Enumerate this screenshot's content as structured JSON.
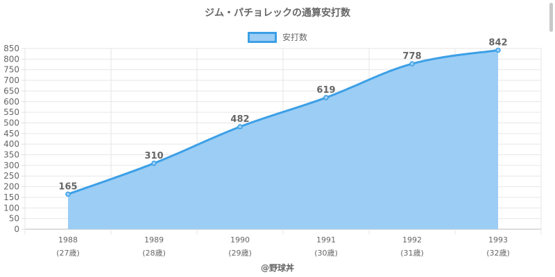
{
  "chart_data": {
    "type": "area",
    "title": "ジム・パチョレックの通算安打数",
    "credit": "@野球丼",
    "categories": [
      "1988",
      "1989",
      "1990",
      "1991",
      "1992",
      "1993"
    ],
    "sub_labels": [
      "(27歳)",
      "(28歳)",
      "(29歳)",
      "(30歳)",
      "(31歳)",
      "(32歳)"
    ],
    "series": [
      {
        "name": "安打数",
        "values": [
          165,
          310,
          482,
          619,
          778,
          842
        ]
      }
    ],
    "ylim": [
      0,
      850
    ],
    "ytick_step": 50,
    "grid": true,
    "legend": "top-center",
    "colors": {
      "line": "#3c9fe6",
      "fill": "#9bcdf5"
    }
  }
}
